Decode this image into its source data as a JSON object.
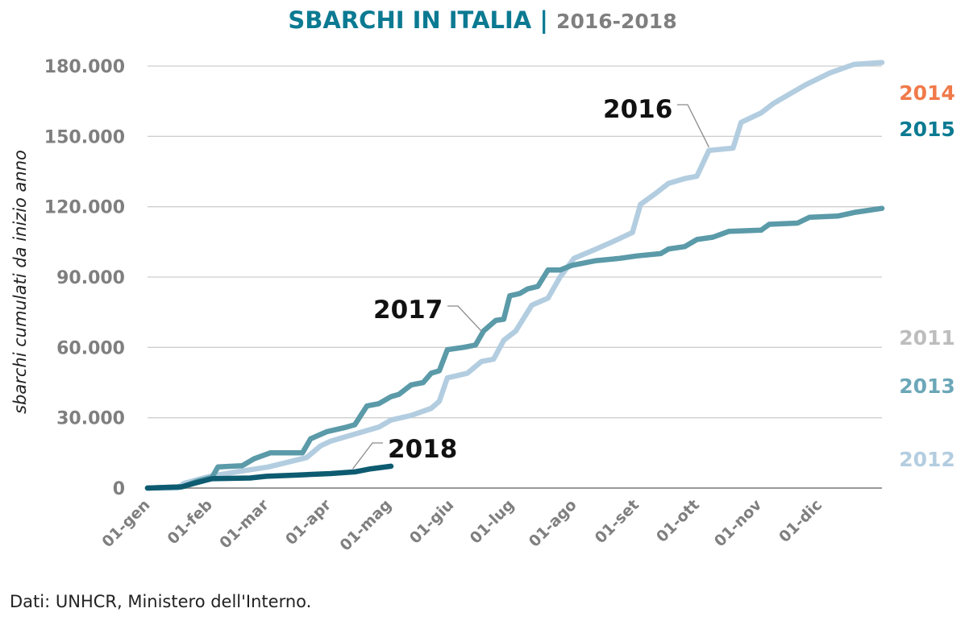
{
  "title": {
    "main": "SBARCHI IN ITALIA",
    "separator": "|",
    "years": "2016-2018"
  },
  "source": "Dati: UNHCR, Ministero dell'Interno.",
  "chart_data": {
    "type": "line",
    "title": "SBARCHI IN ITALIA | 2016-2018",
    "xlabel": "",
    "ylabel": "sbarchi cumulati da inizio anno",
    "xlim": [
      0,
      365
    ],
    "ylim": [
      0,
      180000
    ],
    "grid": true,
    "yticks": [
      0,
      30000,
      60000,
      90000,
      120000,
      150000,
      180000
    ],
    "ytick_labels": [
      "0",
      "30.000",
      "60.000",
      "90.000",
      "120.000",
      "150.000",
      "180.000"
    ],
    "xticks": [
      0,
      31,
      59,
      90,
      120,
      151,
      181,
      212,
      243,
      273,
      304,
      334
    ],
    "xtick_labels": [
      "01-gen",
      "01-feb",
      "01-mar",
      "01-apr",
      "01-mag",
      "01-giu",
      "01-lug",
      "01-ago",
      "01-set",
      "01-ott",
      "01-nov",
      "01-dic"
    ],
    "series": [
      {
        "name": "2016",
        "color": "#b3cde0",
        "label_anchor_day": 279,
        "points": [
          [
            0,
            0
          ],
          [
            15,
            0
          ],
          [
            18,
            2000
          ],
          [
            31,
            5000
          ],
          [
            45,
            7000
          ],
          [
            60,
            9000
          ],
          [
            79,
            13000
          ],
          [
            86,
            18000
          ],
          [
            91,
            20000
          ],
          [
            103,
            23000
          ],
          [
            115,
            26000
          ],
          [
            121,
            29000
          ],
          [
            131,
            31000
          ],
          [
            141,
            34000
          ],
          [
            145,
            37000
          ],
          [
            149,
            47000
          ],
          [
            159,
            49000
          ],
          [
            166,
            54000
          ],
          [
            172,
            55000
          ],
          [
            177,
            63000
          ],
          [
            183,
            67000
          ],
          [
            191,
            78000
          ],
          [
            199,
            81000
          ],
          [
            205,
            90000
          ],
          [
            212,
            98000
          ],
          [
            223,
            102000
          ],
          [
            231,
            105000
          ],
          [
            241,
            109000
          ],
          [
            245,
            121000
          ],
          [
            253,
            126000
          ],
          [
            259,
            130000
          ],
          [
            267,
            132000
          ],
          [
            273,
            133000
          ],
          [
            279,
            144000
          ],
          [
            291,
            145000
          ],
          [
            295,
            156000
          ],
          [
            305,
            160000
          ],
          [
            311,
            164000
          ],
          [
            319,
            168000
          ],
          [
            327,
            172000
          ],
          [
            339,
            177000
          ],
          [
            351,
            180700
          ],
          [
            365,
            181500
          ]
        ]
      },
      {
        "name": "2017",
        "color": "#5b9aa8",
        "label_anchor_day": 166,
        "points": [
          [
            0,
            0
          ],
          [
            17,
            500
          ],
          [
            25,
            3000
          ],
          [
            32,
            4500
          ],
          [
            35,
            9000
          ],
          [
            47,
            9500
          ],
          [
            53,
            12500
          ],
          [
            61,
            15000
          ],
          [
            77,
            15000
          ],
          [
            81,
            21000
          ],
          [
            89,
            24000
          ],
          [
            99,
            26000
          ],
          [
            103,
            27000
          ],
          [
            109,
            35000
          ],
          [
            115,
            36000
          ],
          [
            121,
            39000
          ],
          [
            125,
            40000
          ],
          [
            131,
            44000
          ],
          [
            137,
            45000
          ],
          [
            141,
            49000
          ],
          [
            145,
            50000
          ],
          [
            149,
            59000
          ],
          [
            157,
            60000
          ],
          [
            163,
            61000
          ],
          [
            167,
            67000
          ],
          [
            173,
            71500
          ],
          [
            177,
            72000
          ],
          [
            180,
            82000
          ],
          [
            185,
            83000
          ],
          [
            189,
            85000
          ],
          [
            194,
            86000
          ],
          [
            199,
            93000
          ],
          [
            205,
            93000
          ],
          [
            211,
            95000
          ],
          [
            223,
            97000
          ],
          [
            235,
            98000
          ],
          [
            243,
            99000
          ],
          [
            255,
            100000
          ],
          [
            259,
            102000
          ],
          [
            267,
            103000
          ],
          [
            273,
            106000
          ],
          [
            281,
            107000
          ],
          [
            289,
            109500
          ],
          [
            305,
            110000
          ],
          [
            309,
            112500
          ],
          [
            323,
            113000
          ],
          [
            329,
            115500
          ],
          [
            343,
            116000
          ],
          [
            351,
            117500
          ],
          [
            365,
            119300
          ]
        ]
      },
      {
        "name": "2018",
        "color": "#0d5b70",
        "label_anchor_day": 102,
        "points": [
          [
            0,
            0
          ],
          [
            17,
            500
          ],
          [
            23,
            2000
          ],
          [
            32,
            4000
          ],
          [
            51,
            4300
          ],
          [
            59,
            5000
          ],
          [
            73,
            5500
          ],
          [
            91,
            6200
          ],
          [
            103,
            6900
          ],
          [
            111,
            8200
          ],
          [
            121,
            9300
          ]
        ]
      }
    ],
    "annotations": [
      "2016",
      "2017",
      "2018"
    ],
    "side_labels": [
      {
        "text": "2014",
        "color": "#f07a4a"
      },
      {
        "text": "2015",
        "color": "#0b7a92"
      },
      {
        "text": "2011",
        "color": "#bdbdbd"
      },
      {
        "text": "2013",
        "color": "#6ba7b8"
      },
      {
        "text": "2012",
        "color": "#b3cde0"
      }
    ]
  }
}
